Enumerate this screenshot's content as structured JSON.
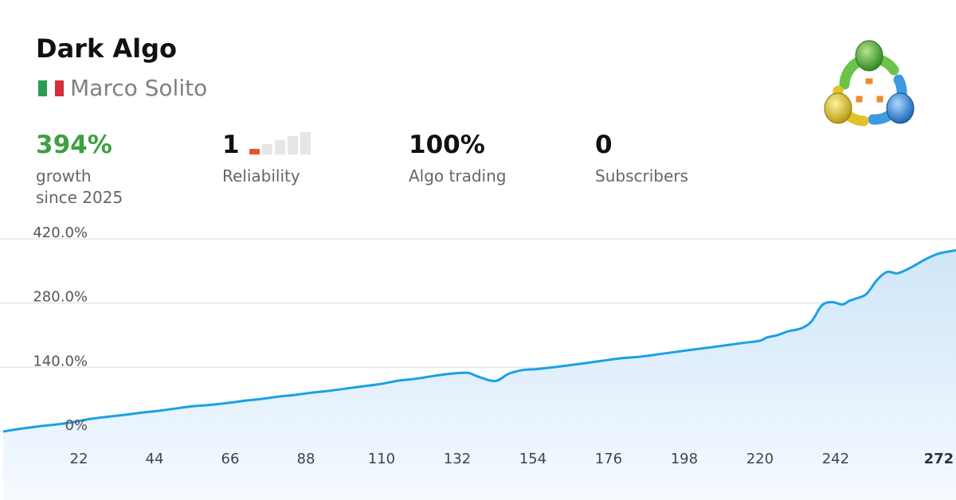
{
  "header": {
    "title": "Dark Algo",
    "author": "Marco Solito",
    "flag_colors": [
      "#2a9d52",
      "#ffffff",
      "#d62f3c"
    ]
  },
  "stats": {
    "growth": {
      "value": "394%",
      "label_line1": "growth",
      "label_line2": "since 2025"
    },
    "reliability": {
      "value": "1",
      "label": "Reliability",
      "level": 1,
      "max_level": 5,
      "active_color": "#e8542a",
      "inactive_color": "#e6e6e6"
    },
    "algo": {
      "value": "100%",
      "label": "Algo trading"
    },
    "subscribers": {
      "value": "0",
      "label": "Subscribers"
    }
  },
  "colors": {
    "growth": "#3ca042",
    "line": "#1aa0e6",
    "fill_top": "#cfe6f8",
    "fill_bottom": "#f5faff",
    "grid": "#e6e6e6"
  },
  "chart_data": {
    "type": "area",
    "title": "",
    "xlabel": "",
    "ylabel": "",
    "xlim": [
      0,
      277
    ],
    "ylim": [
      0,
      420
    ],
    "y_ticks": [
      0,
      140,
      280,
      420
    ],
    "y_tick_labels": [
      "0%",
      "140.0%",
      "280.0%",
      "420.0%"
    ],
    "x_ticks": [
      22,
      44,
      66,
      88,
      110,
      132,
      154,
      176,
      198,
      220,
      242,
      272
    ],
    "x_tick_labels": [
      "22",
      "44",
      "66",
      "88",
      "110",
      "132",
      "154",
      "176",
      "198",
      "220",
      "242",
      "272"
    ],
    "grid": true,
    "series": [
      {
        "x": [
          0,
          5,
          10,
          15,
          20,
          25,
          30,
          35,
          40,
          45,
          50,
          55,
          60,
          65,
          70,
          75,
          80,
          85,
          90,
          95,
          100,
          105,
          110,
          115,
          120,
          125,
          130,
          135,
          138,
          143,
          147,
          151,
          155,
          160,
          165,
          170,
          175,
          180,
          185,
          190,
          195,
          200,
          205,
          210,
          215,
          220,
          222,
          225,
          228,
          232,
          235,
          238,
          241,
          244,
          246,
          248,
          251,
          254,
          257,
          260,
          264,
          268,
          272,
          277
        ],
        "y": [
          0,
          6,
          11,
          15,
          20,
          27,
          32,
          36,
          41,
          45,
          50,
          55,
          58,
          62,
          67,
          71,
          76,
          80,
          85,
          89,
          94,
          99,
          104,
          111,
          115,
          121,
          126,
          128,
          120,
          110,
          126,
          134,
          136,
          140,
          145,
          150,
          155,
          160,
          163,
          168,
          173,
          178,
          183,
          188,
          193,
          198,
          205,
          210,
          218,
          225,
          240,
          275,
          282,
          277,
          285,
          290,
          300,
          330,
          348,
          345,
          358,
          375,
          388,
          395
        ]
      }
    ]
  }
}
